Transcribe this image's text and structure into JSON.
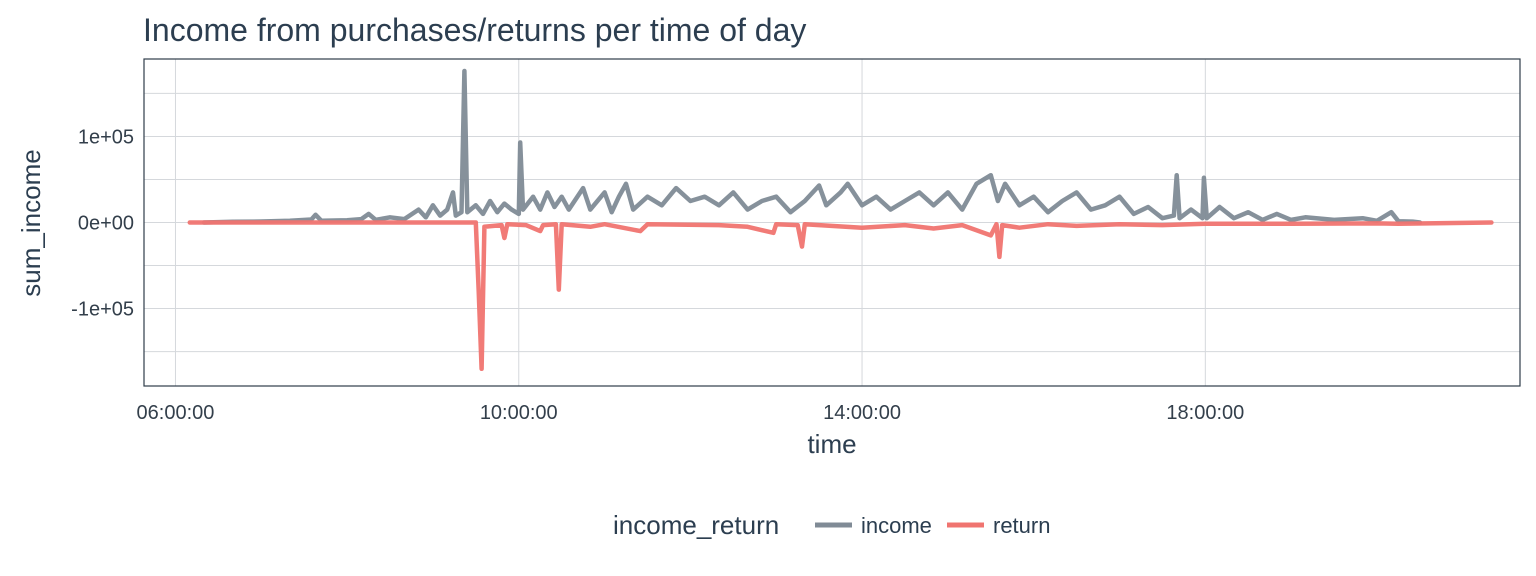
{
  "title": "Income from purchases/returns per time of day",
  "chart_data": {
    "type": "line",
    "title": "Income from purchases/returns per time of day",
    "xlabel": "time",
    "ylabel": "sum_income",
    "x_unit": "hours",
    "xlim": [
      "05:38:00",
      "21:40:00"
    ],
    "ylim": [
      -190000,
      190000
    ],
    "x_ticks": [
      "06:00:00",
      "10:00:00",
      "14:00:00",
      "18:00:00"
    ],
    "y_ticks": [
      "-1e+05",
      "0e+00",
      "1e+05"
    ],
    "y_tick_values": [
      -100000,
      0,
      100000
    ],
    "grid": true,
    "legend": {
      "title": "income_return",
      "position": "bottom"
    },
    "series": [
      {
        "name": "income",
        "color": "#808b96",
        "points": [
          [
            "06:20:00",
            0
          ],
          [
            "06:40:00",
            800
          ],
          [
            "07:00:00",
            1200
          ],
          [
            "07:20:00",
            2000
          ],
          [
            "07:35:00",
            3500
          ],
          [
            "07:38:00",
            9000
          ],
          [
            "07:42:00",
            2000
          ],
          [
            "08:00:00",
            2500
          ],
          [
            "08:10:00",
            4000
          ],
          [
            "08:15:00",
            10000
          ],
          [
            "08:20:00",
            3000
          ],
          [
            "08:30:00",
            6000
          ],
          [
            "08:40:00",
            4000
          ],
          [
            "08:50:00",
            15000
          ],
          [
            "08:55:00",
            6000
          ],
          [
            "09:00:00",
            20000
          ],
          [
            "09:05:00",
            8000
          ],
          [
            "09:10:00",
            15000
          ],
          [
            "09:14:00",
            35000
          ],
          [
            "09:16:00",
            8000
          ],
          [
            "09:20:00",
            12000
          ],
          [
            "09:22:00",
            176000
          ],
          [
            "09:24:00",
            12000
          ],
          [
            "09:30:00",
            20000
          ],
          [
            "09:35:00",
            10000
          ],
          [
            "09:40:00",
            25000
          ],
          [
            "09:45:00",
            12000
          ],
          [
            "09:50:00",
            22000
          ],
          [
            "09:55:00",
            15000
          ],
          [
            "10:00:00",
            10000
          ],
          [
            "10:01:00",
            93000
          ],
          [
            "10:03:00",
            15000
          ],
          [
            "10:10:00",
            30000
          ],
          [
            "10:15:00",
            15000
          ],
          [
            "10:20:00",
            35000
          ],
          [
            "10:25:00",
            18000
          ],
          [
            "10:30:00",
            30000
          ],
          [
            "10:35:00",
            15000
          ],
          [
            "10:45:00",
            40000
          ],
          [
            "10:50:00",
            15000
          ],
          [
            "11:00:00",
            35000
          ],
          [
            "11:05:00",
            12000
          ],
          [
            "11:10:00",
            30000
          ],
          [
            "11:15:00",
            45000
          ],
          [
            "11:20:00",
            15000
          ],
          [
            "11:30:00",
            30000
          ],
          [
            "11:40:00",
            20000
          ],
          [
            "11:50:00",
            40000
          ],
          [
            "12:00:00",
            25000
          ],
          [
            "12:10:00",
            30000
          ],
          [
            "12:20:00",
            20000
          ],
          [
            "12:30:00",
            35000
          ],
          [
            "12:40:00",
            15000
          ],
          [
            "12:50:00",
            25000
          ],
          [
            "13:00:00",
            30000
          ],
          [
            "13:10:00",
            12000
          ],
          [
            "13:20:00",
            25000
          ],
          [
            "13:30:00",
            43000
          ],
          [
            "13:35:00",
            20000
          ],
          [
            "13:45:00",
            35000
          ],
          [
            "13:50:00",
            45000
          ],
          [
            "14:00:00",
            20000
          ],
          [
            "14:10:00",
            30000
          ],
          [
            "14:20:00",
            15000
          ],
          [
            "14:30:00",
            25000
          ],
          [
            "14:40:00",
            35000
          ],
          [
            "14:50:00",
            20000
          ],
          [
            "15:00:00",
            35000
          ],
          [
            "15:10:00",
            15000
          ],
          [
            "15:20:00",
            45000
          ],
          [
            "15:30:00",
            55000
          ],
          [
            "15:35:00",
            25000
          ],
          [
            "15:40:00",
            45000
          ],
          [
            "15:50:00",
            20000
          ],
          [
            "16:00:00",
            30000
          ],
          [
            "16:10:00",
            12000
          ],
          [
            "16:20:00",
            25000
          ],
          [
            "16:30:00",
            35000
          ],
          [
            "16:40:00",
            15000
          ],
          [
            "16:50:00",
            20000
          ],
          [
            "17:00:00",
            30000
          ],
          [
            "17:10:00",
            10000
          ],
          [
            "17:20:00",
            18000
          ],
          [
            "17:30:00",
            5000
          ],
          [
            "17:38:00",
            8000
          ],
          [
            "17:40:00",
            55000
          ],
          [
            "17:42:00",
            5000
          ],
          [
            "17:50:00",
            15000
          ],
          [
            "17:58:00",
            5000
          ],
          [
            "17:59:00",
            52000
          ],
          [
            "18:01:00",
            5000
          ],
          [
            "18:10:00",
            18000
          ],
          [
            "18:20:00",
            5000
          ],
          [
            "18:30:00",
            12000
          ],
          [
            "18:40:00",
            3000
          ],
          [
            "18:50:00",
            10000
          ],
          [
            "19:00:00",
            3000
          ],
          [
            "19:10:00",
            6000
          ],
          [
            "19:30:00",
            3000
          ],
          [
            "19:50:00",
            5000
          ],
          [
            "20:00:00",
            2000
          ],
          [
            "20:10:00",
            12000
          ],
          [
            "20:15:00",
            1500
          ],
          [
            "20:25:00",
            1000
          ],
          [
            "20:30:00",
            0
          ]
        ]
      },
      {
        "name": "return",
        "color": "#f07470",
        "points": [
          [
            "06:10:00",
            0
          ],
          [
            "09:30:00",
            0
          ],
          [
            "09:32:00",
            -80000
          ],
          [
            "09:34:00",
            -170000
          ],
          [
            "09:36:00",
            -5000
          ],
          [
            "09:48:00",
            -3000
          ],
          [
            "09:50:00",
            -18000
          ],
          [
            "09:52:00",
            -2000
          ],
          [
            "10:05:00",
            -3000
          ],
          [
            "10:15:00",
            -10000
          ],
          [
            "10:17:00",
            -3000
          ],
          [
            "10:26:00",
            -2000
          ],
          [
            "10:28:00",
            -78000
          ],
          [
            "10:30:00",
            -2000
          ],
          [
            "10:50:00",
            -5000
          ],
          [
            "11:00:00",
            -2000
          ],
          [
            "11:25:00",
            -10000
          ],
          [
            "11:30:00",
            -2000
          ],
          [
            "12:20:00",
            -3000
          ],
          [
            "12:40:00",
            -5000
          ],
          [
            "12:58:00",
            -12000
          ],
          [
            "13:00:00",
            -2000
          ],
          [
            "13:15:00",
            -3000
          ],
          [
            "13:18:00",
            -28000
          ],
          [
            "13:20:00",
            -2000
          ],
          [
            "14:00:00",
            -6000
          ],
          [
            "14:30:00",
            -3000
          ],
          [
            "14:50:00",
            -7000
          ],
          [
            "15:10:00",
            -3000
          ],
          [
            "15:20:00",
            -9000
          ],
          [
            "15:30:00",
            -15000
          ],
          [
            "15:34:00",
            -2000
          ],
          [
            "15:36:00",
            -40000
          ],
          [
            "15:38:00",
            -3000
          ],
          [
            "15:50:00",
            -6000
          ],
          [
            "16:10:00",
            -2000
          ],
          [
            "16:30:00",
            -4000
          ],
          [
            "17:00:00",
            -2000
          ],
          [
            "17:30:00",
            -3000
          ],
          [
            "18:00:00",
            -1500
          ],
          [
            "19:00:00",
            -1500
          ],
          [
            "20:00:00",
            -1000
          ],
          [
            "20:15:00",
            -1500
          ],
          [
            "21:20:00",
            0
          ]
        ]
      }
    ]
  }
}
